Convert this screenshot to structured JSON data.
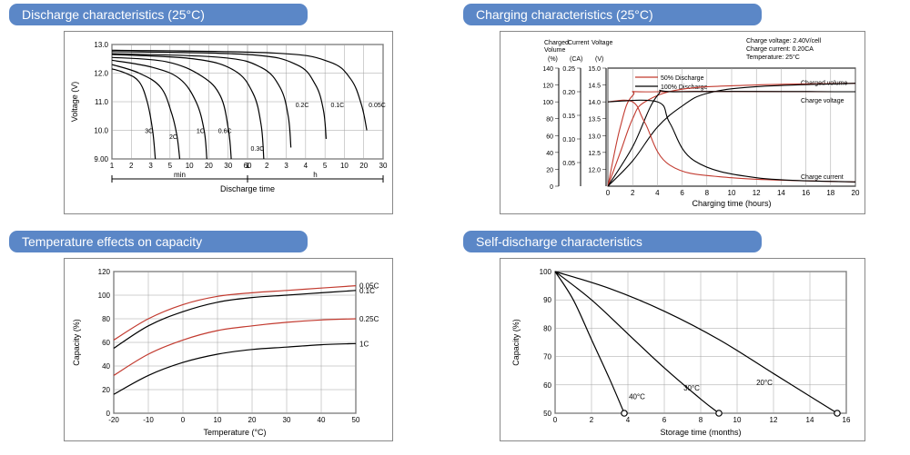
{
  "header_bg": "#5b87c7",
  "header_fg": "#ffffff",
  "frame_border": "#808080",
  "chart_colors": {
    "axis": "#000000",
    "grid": "#a0a0a0",
    "black_series": "#000000",
    "red_series": "#c23a2f",
    "text": "#000000"
  },
  "panels": {
    "discharge": {
      "title": "Discharge characteristics (25°C)",
      "type": "line-log-x",
      "x_label": "Discharge time",
      "x_unit_left": "min",
      "x_unit_right": "h",
      "x_ticks_min": [
        "1",
        "2",
        "3",
        "5",
        "10",
        "20",
        "30",
        "60"
      ],
      "x_ticks_h": [
        "1",
        "2",
        "3",
        "4",
        "5",
        "10",
        "20",
        "30"
      ],
      "y_label": "Voltage (V)",
      "y_ticks": [
        "9.00",
        "10.0",
        "11.0",
        "12.0",
        "13.0"
      ],
      "ylim": [
        9.0,
        13.0
      ],
      "series": [
        {
          "name": "3C",
          "color": "#000000",
          "points": [
            [
              0.0,
              12.15
            ],
            [
              0.05,
              12.0
            ],
            [
              0.1,
              11.7
            ],
            [
              0.13,
              11.0
            ],
            [
              0.15,
              10.0
            ],
            [
              0.16,
              9.0
            ]
          ]
        },
        {
          "name": "2C",
          "color": "#000000",
          "points": [
            [
              0.0,
              12.3
            ],
            [
              0.1,
              12.0
            ],
            [
              0.18,
              11.5
            ],
            [
              0.22,
              10.6
            ],
            [
              0.24,
              9.8
            ],
            [
              0.25,
              9.0
            ]
          ]
        },
        {
          "name": "1C",
          "color": "#000000",
          "points": [
            [
              0.0,
              12.45
            ],
            [
              0.15,
              12.2
            ],
            [
              0.25,
              11.8
            ],
            [
              0.31,
              11.0
            ],
            [
              0.34,
              10.0
            ],
            [
              0.35,
              9.0
            ]
          ]
        },
        {
          "name": "0.6C",
          "color": "#000000",
          "points": [
            [
              0.0,
              12.55
            ],
            [
              0.2,
              12.4
            ],
            [
              0.33,
              11.9
            ],
            [
              0.4,
              11.2
            ],
            [
              0.43,
              10.0
            ],
            [
              0.44,
              9.0
            ]
          ]
        },
        {
          "name": "0.3C",
          "color": "#000000",
          "points": [
            [
              0.0,
              12.65
            ],
            [
              0.3,
              12.5
            ],
            [
              0.45,
              12.1
            ],
            [
              0.52,
              11.3
            ],
            [
              0.55,
              10.2
            ],
            [
              0.56,
              9.0
            ]
          ]
        },
        {
          "name": "0.2C",
          "color": "#000000",
          "points": [
            [
              0.0,
              12.68
            ],
            [
              0.4,
              12.55
            ],
            [
              0.55,
              12.2
            ],
            [
              0.62,
              11.5
            ],
            [
              0.65,
              10.5
            ],
            [
              0.66,
              9.4
            ]
          ]
        },
        {
          "name": "0.1C",
          "color": "#000000",
          "points": [
            [
              0.0,
              12.75
            ],
            [
              0.5,
              12.65
            ],
            [
              0.68,
              12.3
            ],
            [
              0.75,
              11.6
            ],
            [
              0.78,
              10.7
            ],
            [
              0.79,
              9.7
            ]
          ]
        },
        {
          "name": "0.05C",
          "color": "#000000",
          "points": [
            [
              0.0,
              12.8
            ],
            [
              0.6,
              12.7
            ],
            [
              0.8,
              12.4
            ],
            [
              0.88,
              11.8
            ],
            [
              0.92,
              10.9
            ],
            [
              0.94,
              10.0
            ]
          ]
        }
      ],
      "series_label_y": {
        "0.2C": 10.9,
        "0.1C": 10.9,
        "0.05C": 10.9,
        "0.3C": 9.6
      }
    },
    "charging": {
      "title": "Charging characteristics (25°C)",
      "type": "multi-axis-line",
      "annotations": [
        "Charge voltage: 2.40V/cell",
        "Charge current: 0.20CA",
        "Temperature: 25°C"
      ],
      "legend": [
        {
          "label": "50% Discharge",
          "color": "#c23a2f"
        },
        {
          "label": "100% Discharge",
          "color": "#000000"
        }
      ],
      "curve_labels": [
        "Charged volume",
        "Charge voltage",
        "Charge current"
      ],
      "x_label": "Charging time (hours)",
      "x_ticks": [
        0,
        2,
        4,
        6,
        8,
        10,
        12,
        14,
        16,
        18,
        20
      ],
      "y_axes": [
        {
          "label": "Charged Volume",
          "unit": "(%)",
          "ticks": [
            0,
            20,
            40,
            60,
            80,
            100,
            120,
            140
          ]
        },
        {
          "label": "Current",
          "unit": "(CA)",
          "ticks": [
            "",
            "0.05",
            "0.10",
            "0.15",
            "0.20",
            "0.25"
          ]
        },
        {
          "label": "Voltage",
          "unit": "(V)",
          "ticks": [
            "",
            "12.0",
            "12.5",
            "13.0",
            "13.5",
            "14.0",
            "14.5",
            "15.0"
          ]
        }
      ],
      "series": {
        "volume_50": {
          "color": "#c23a2f",
          "points": [
            [
              0,
              0
            ],
            [
              1,
              40
            ],
            [
              2,
              80
            ],
            [
              3,
              100
            ],
            [
              6,
              115
            ],
            [
              12,
              120
            ],
            [
              20,
              122
            ]
          ]
        },
        "volume_100": {
          "color": "#000000",
          "points": [
            [
              0,
              0
            ],
            [
              2,
              30
            ],
            [
              4,
              70
            ],
            [
              6,
              95
            ],
            [
              8,
              110
            ],
            [
              12,
              118
            ],
            [
              20,
              122
            ]
          ]
        },
        "voltage_50": {
          "color": "#c23a2f",
          "points": [
            [
              0,
              12.0
            ],
            [
              1,
              13.5
            ],
            [
              2,
              14.3
            ],
            [
              4,
              14.4
            ],
            [
              20,
              14.4
            ]
          ],
          "axis": "V"
        },
        "voltage_100": {
          "color": "#000000",
          "points": [
            [
              0,
              12.0
            ],
            [
              2,
              13.0
            ],
            [
              4,
              14.3
            ],
            [
              6,
              14.4
            ],
            [
              20,
              14.4
            ]
          ],
          "axis": "V"
        },
        "current_50": {
          "color": "#c23a2f",
          "points": [
            [
              0,
              0.2
            ],
            [
              2,
              0.2
            ],
            [
              3,
              0.15
            ],
            [
              5,
              0.05
            ],
            [
              10,
              0.02
            ],
            [
              20,
              0.01
            ]
          ],
          "axis": "CA"
        },
        "current_100": {
          "color": "#000000",
          "points": [
            [
              0,
              0.2
            ],
            [
              4,
              0.2
            ],
            [
              5,
              0.15
            ],
            [
              7,
              0.06
            ],
            [
              12,
              0.02
            ],
            [
              20,
              0.01
            ]
          ],
          "axis": "CA"
        }
      }
    },
    "temperature": {
      "title": "Temperature effects on capacity",
      "type": "line",
      "x_label": "Temperature (°C)",
      "x_ticks": [
        -20,
        -10,
        0,
        10,
        20,
        30,
        40,
        50
      ],
      "y_label": "Capacity (%)",
      "y_ticks": [
        0,
        20,
        40,
        60,
        80,
        100,
        120
      ],
      "series": [
        {
          "name": "0.05C",
          "color": "#c23a2f",
          "points": [
            [
              -20,
              62
            ],
            [
              -10,
              80
            ],
            [
              0,
              92
            ],
            [
              10,
              99
            ],
            [
              20,
              102
            ],
            [
              30,
              104
            ],
            [
              40,
              106
            ],
            [
              50,
              108
            ]
          ]
        },
        {
          "name": "0.1C",
          "color": "#000000",
          "points": [
            [
              -20,
              55
            ],
            [
              -10,
              74
            ],
            [
              0,
              86
            ],
            [
              10,
              94
            ],
            [
              20,
              98
            ],
            [
              30,
              100
            ],
            [
              40,
              102
            ],
            [
              50,
              104
            ]
          ]
        },
        {
          "name": "0.25C",
          "color": "#c23a2f",
          "points": [
            [
              -20,
              32
            ],
            [
              -10,
              50
            ],
            [
              0,
              62
            ],
            [
              10,
              70
            ],
            [
              20,
              74
            ],
            [
              30,
              77
            ],
            [
              40,
              79
            ],
            [
              50,
              80
            ]
          ]
        },
        {
          "name": "1C",
          "color": "#000000",
          "points": [
            [
              -20,
              16
            ],
            [
              -10,
              32
            ],
            [
              0,
              43
            ],
            [
              10,
              50
            ],
            [
              20,
              54
            ],
            [
              30,
              56
            ],
            [
              40,
              58
            ],
            [
              50,
              59
            ]
          ]
        }
      ]
    },
    "selfdischarge": {
      "title": "Self-discharge characteristics",
      "type": "line",
      "x_label": "Storage time (months)",
      "x_ticks": [
        0,
        2,
        4,
        6,
        8,
        10,
        12,
        14,
        16
      ],
      "y_label": "Capacity (%)",
      "y_ticks": [
        50,
        60,
        70,
        80,
        90,
        100
      ],
      "series": [
        {
          "name": "40°C",
          "color": "#000000",
          "points": [
            [
              0,
              100
            ],
            [
              1,
              90
            ],
            [
              2,
              76
            ],
            [
              3,
              62
            ],
            [
              3.8,
              50
            ]
          ],
          "end_marker": true,
          "label_pos": [
            4.5,
            55
          ]
        },
        {
          "name": "30°C",
          "color": "#000000",
          "points": [
            [
              0,
              100
            ],
            [
              2,
              90
            ],
            [
              4,
              78
            ],
            [
              6,
              66
            ],
            [
              8,
              55
            ],
            [
              9,
              50
            ]
          ],
          "end_marker": true,
          "label_pos": [
            7.5,
            58
          ]
        },
        {
          "name": "20°C",
          "color": "#000000",
          "points": [
            [
              0,
              100
            ],
            [
              3,
              94
            ],
            [
              6,
              86
            ],
            [
              9,
              76
            ],
            [
              12,
              64
            ],
            [
              15,
              52
            ],
            [
              15.5,
              50
            ]
          ],
          "end_marker": true,
          "label_pos": [
            11.5,
            60
          ]
        }
      ]
    }
  }
}
